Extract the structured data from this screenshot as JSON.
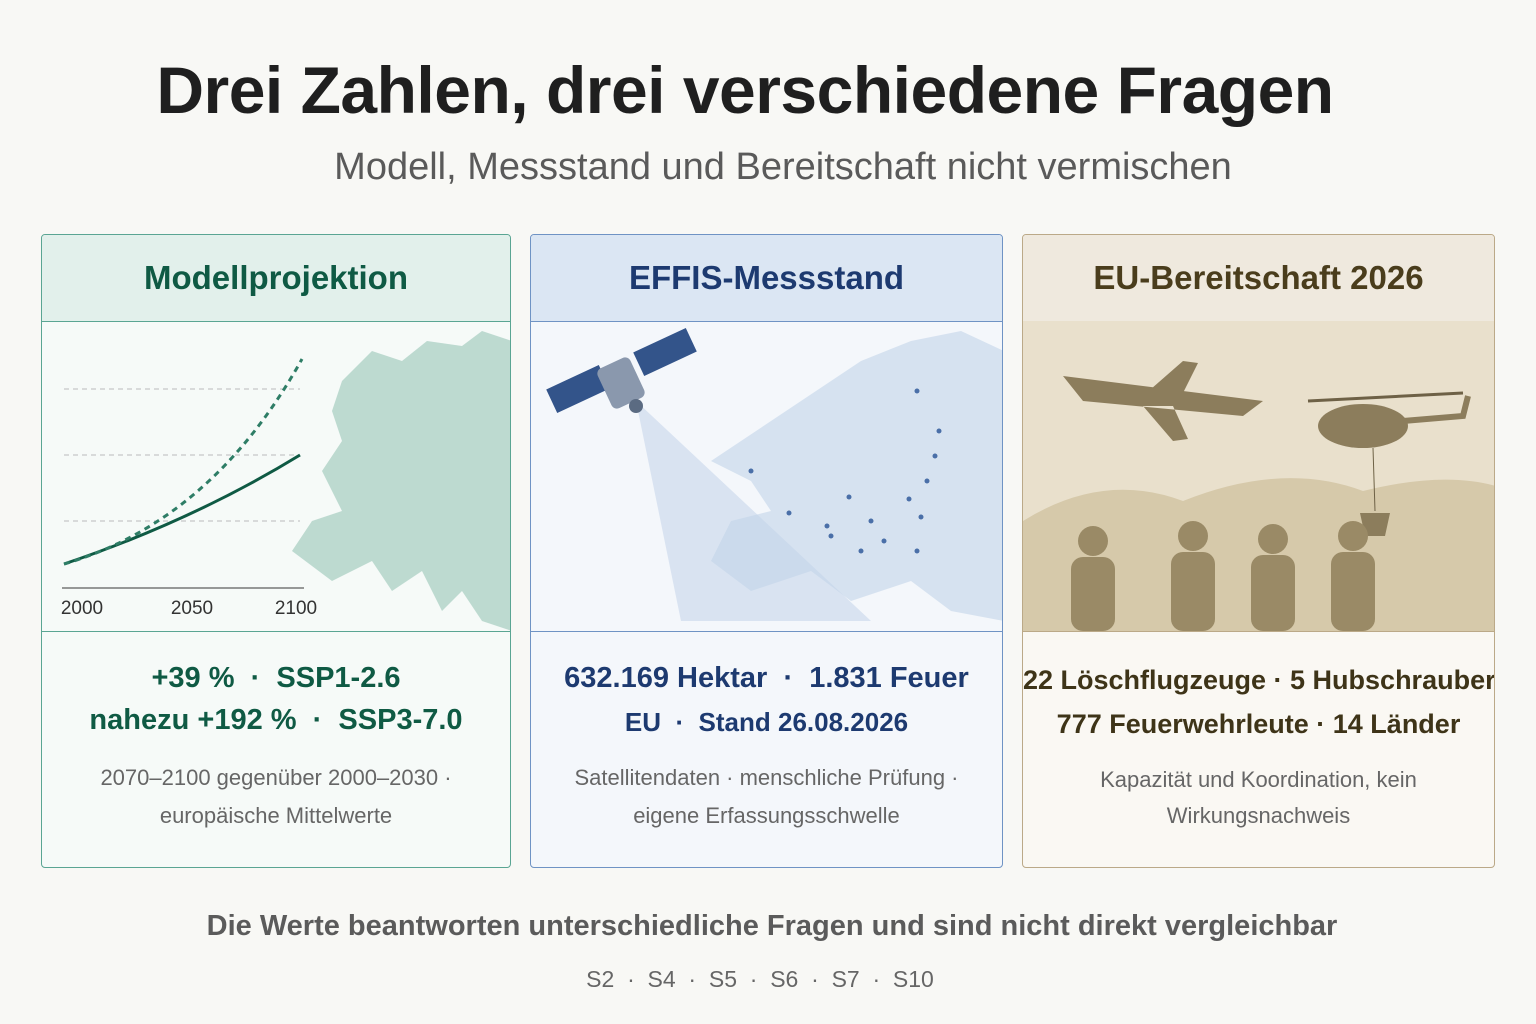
{
  "header": {
    "title": "Drei Zahlen, drei verschiedene Fragen",
    "subtitle": "Modell, Messstand und Bereitschaft nicht vermischen"
  },
  "cards": [
    {
      "title": "Modellprojektion",
      "chart": {
        "xticks": [
          "2000",
          "2050",
          "2100"
        ]
      },
      "stats": [
        "+39 %  ·  SSP1-2.6",
        "nahezu +192 %  ·  SSP3-7.0"
      ],
      "notes": [
        "2070–2100 gegenüber 2000–2030 ·",
        "europäische Mittelwerte"
      ]
    },
    {
      "title": "EFFIS-Messstand",
      "stats": [
        "632.169 Hektar  ·  1.831 Feuer",
        "EU  ·  Stand 26.08.2026"
      ],
      "notes": [
        "Satellitendaten · menschliche Prüfung ·",
        "eigene Erfassungsschwelle"
      ]
    },
    {
      "title": "EU-Bereitschaft 2026",
      "stats": [
        "22 Löschflugzeuge · 5 Hubschrauber",
        "777 Feuerwehrleute · 14 Länder"
      ],
      "notes": [
        "Kapazität und Koordination, kein",
        "Wirkungsnachweis"
      ]
    }
  ],
  "footer": {
    "note": "Die Werte beantworten unterschiedliche Fragen und sind nicht direkt vergleichbar",
    "sources": "S2  ·  S4  ·  S5  ·  S6  ·  S7  ·  S10"
  }
}
